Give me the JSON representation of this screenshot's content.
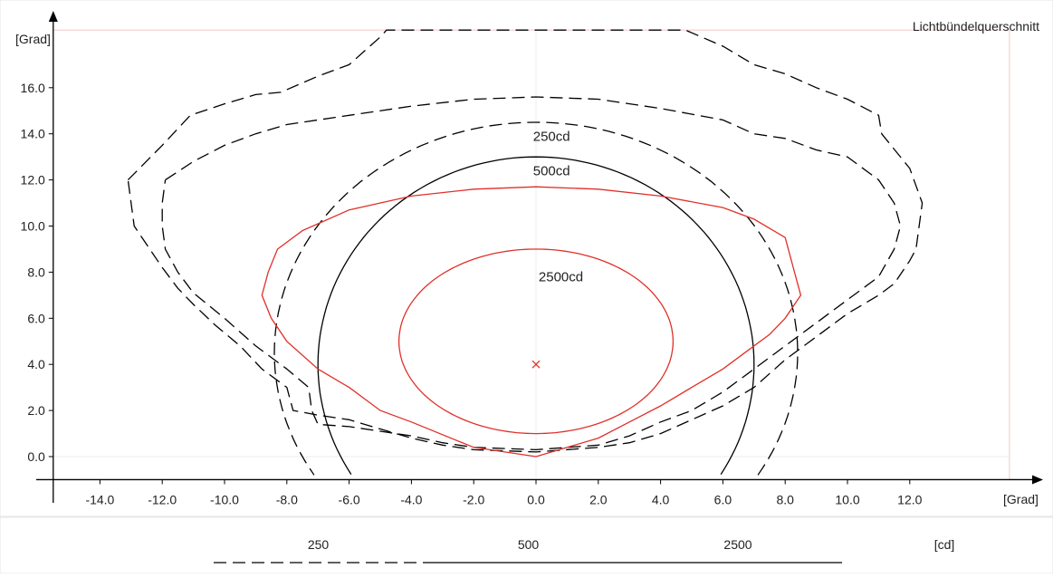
{
  "chart_data": {
    "type": "line",
    "title": "Lichtbündelquerschnitt",
    "xlabel": "[Grad]",
    "ylabel": "[Grad]",
    "xlim": [
      -15.5,
      16.3
    ],
    "ylim": [
      -1.4,
      18.5
    ],
    "xticks": [
      -14.0,
      -12.0,
      -10.0,
      -8.0,
      -6.0,
      -4.0,
      -2.0,
      0.0,
      2.0,
      4.0,
      6.0,
      8.0,
      10.0,
      12.0
    ],
    "yticks": [
      0.0,
      2.0,
      4.0,
      6.0,
      8.0,
      10.0,
      12.0,
      14.0,
      16.0
    ],
    "center_marker": {
      "x": 0,
      "y": 4.0,
      "color": "#e0302a"
    },
    "contour_labels": [
      {
        "text": "250cd",
        "x": 0.5,
        "y": 13.7
      },
      {
        "text": "500cd",
        "x": 0.5,
        "y": 12.2
      },
      {
        "text": "2500cd",
        "x": 0.8,
        "y": 7.6
      }
    ],
    "series": [
      {
        "level": "250",
        "style": "dashed",
        "color": "#000000",
        "points": [
          [
            -13.1,
            12.0
          ],
          [
            -12.0,
            13.5
          ],
          [
            -11.1,
            14.8
          ],
          [
            -10.0,
            15.3
          ],
          [
            -9.0,
            15.7
          ],
          [
            -8.2,
            15.8
          ],
          [
            -7.0,
            16.5
          ],
          [
            -6.0,
            17.0
          ],
          [
            -5.0,
            18.2
          ],
          [
            -4.8,
            18.5
          ],
          [
            4.8,
            18.5
          ],
          [
            6.0,
            17.8
          ],
          [
            7.0,
            17.0
          ],
          [
            8.0,
            16.6
          ],
          [
            9.0,
            16.0
          ],
          [
            10.0,
            15.5
          ],
          [
            11.0,
            14.8
          ],
          [
            11.1,
            14.0
          ],
          [
            12.0,
            12.5
          ],
          [
            12.4,
            11.0
          ],
          [
            12.2,
            9.0
          ],
          [
            12.0,
            8.5
          ],
          [
            11.5,
            7.5
          ],
          [
            11.0,
            7.0
          ],
          [
            10.0,
            6.2
          ],
          [
            9.0,
            5.2
          ],
          [
            8.0,
            4.2
          ],
          [
            7.0,
            3.0
          ],
          [
            6.0,
            2.2
          ],
          [
            5.0,
            1.6
          ],
          [
            4.0,
            1.0
          ],
          [
            3.0,
            0.6
          ],
          [
            2.0,
            0.4
          ],
          [
            0.0,
            0.2
          ],
          [
            -2.0,
            0.3
          ],
          [
            -3.0,
            0.5
          ],
          [
            -4.0,
            0.8
          ],
          [
            -5.0,
            1.2
          ],
          [
            -6.0,
            1.6
          ],
          [
            -7.0,
            1.8
          ],
          [
            -7.8,
            2.0
          ],
          [
            -8.0,
            3.0
          ],
          [
            -8.8,
            3.8
          ],
          [
            -9.5,
            4.8
          ],
          [
            -10.3,
            5.7
          ],
          [
            -11.0,
            6.6
          ],
          [
            -11.5,
            7.3
          ],
          [
            -12.0,
            8.2
          ],
          [
            -12.5,
            9.2
          ],
          [
            -12.9,
            10.0
          ],
          [
            -13.0,
            11.0
          ],
          [
            -13.1,
            12.0
          ]
        ]
      },
      {
        "level": "500",
        "style": "dashed",
        "color": "#000000",
        "points": [
          [
            -11.9,
            12.0
          ],
          [
            -11.0,
            12.8
          ],
          [
            -10.0,
            13.5
          ],
          [
            -9.0,
            14.0
          ],
          [
            -8.0,
            14.4
          ],
          [
            -6.0,
            14.8
          ],
          [
            -4.0,
            15.2
          ],
          [
            -2.0,
            15.5
          ],
          [
            0.0,
            15.6
          ],
          [
            2.0,
            15.5
          ],
          [
            4.0,
            15.1
          ],
          [
            6.0,
            14.6
          ],
          [
            7.0,
            14.0
          ],
          [
            8.0,
            13.8
          ],
          [
            9.0,
            13.3
          ],
          [
            10.0,
            13.0
          ],
          [
            11.0,
            12.0
          ],
          [
            11.5,
            11.0
          ],
          [
            11.7,
            10.0
          ],
          [
            11.5,
            9.0
          ],
          [
            11.0,
            7.8
          ],
          [
            10.0,
            6.8
          ],
          [
            9.0,
            5.8
          ],
          [
            8.0,
            4.8
          ],
          [
            7.0,
            3.8
          ],
          [
            6.0,
            2.8
          ],
          [
            5.0,
            2.0
          ],
          [
            4.0,
            1.5
          ],
          [
            3.0,
            0.9
          ],
          [
            2.0,
            0.5
          ],
          [
            0.0,
            0.3
          ],
          [
            -2.0,
            0.4
          ],
          [
            -3.0,
            0.6
          ],
          [
            -4.0,
            0.9
          ],
          [
            -5.0,
            1.1
          ],
          [
            -6.0,
            1.3
          ],
          [
            -7.0,
            1.4
          ],
          [
            -7.2,
            2.0
          ],
          [
            -7.3,
            3.0
          ],
          [
            -8.0,
            3.8
          ],
          [
            -9.0,
            4.8
          ],
          [
            -10.0,
            6.0
          ],
          [
            -11.0,
            7.1
          ],
          [
            -11.5,
            8.0
          ],
          [
            -11.9,
            9.0
          ],
          [
            -12.0,
            10.0
          ],
          [
            -12.0,
            11.0
          ],
          [
            -11.9,
            12.0
          ]
        ]
      },
      {
        "level": "250",
        "style": "dashed",
        "color": "#000000",
        "ellipse": {
          "cx": 0.0,
          "cy": 4.5,
          "rx": 8.4,
          "ry": 10.0,
          "clip_below": -1.0
        }
      },
      {
        "level": "500",
        "style": "solid",
        "color": "#000000",
        "ellipse": {
          "cx": 0.0,
          "cy": 4.0,
          "rx": 7.0,
          "ry": 9.0,
          "clip_below": -1.0
        }
      },
      {
        "level": "500",
        "style": "solid",
        "color": "#e0302a",
        "points": [
          [
            -8.6,
            8.0
          ],
          [
            -8.3,
            9.0
          ],
          [
            -7.5,
            9.8
          ],
          [
            -6.0,
            10.7
          ],
          [
            -4.0,
            11.3
          ],
          [
            -2.0,
            11.6
          ],
          [
            0.0,
            11.7
          ],
          [
            2.0,
            11.6
          ],
          [
            4.0,
            11.3
          ],
          [
            6.0,
            10.8
          ],
          [
            7.0,
            10.3
          ],
          [
            8.0,
            9.5
          ],
          [
            8.3,
            8.0
          ],
          [
            8.5,
            7.0
          ],
          [
            8.0,
            6.0
          ],
          [
            7.5,
            5.3
          ],
          [
            7.0,
            4.8
          ],
          [
            6.0,
            3.8
          ],
          [
            5.0,
            3.0
          ],
          [
            4.0,
            2.2
          ],
          [
            3.0,
            1.5
          ],
          [
            2.0,
            0.8
          ],
          [
            0.0,
            0.0
          ],
          [
            -2.0,
            0.4
          ],
          [
            -4.0,
            1.5
          ],
          [
            -5.0,
            2.0
          ],
          [
            -6.0,
            3.0
          ],
          [
            -7.0,
            3.8
          ],
          [
            -8.0,
            5.0
          ],
          [
            -8.5,
            6.0
          ],
          [
            -8.8,
            7.0
          ],
          [
            -8.6,
            8.0
          ]
        ]
      },
      {
        "level": "2500",
        "style": "solid",
        "color": "#e0302a",
        "ellipse": {
          "cx": 0.0,
          "cy": 5.0,
          "rx": 4.4,
          "ry": 4.0
        }
      }
    ],
    "legend": [
      {
        "label": "250",
        "style": "dashed"
      },
      {
        "label": "500",
        "style": "solid"
      },
      {
        "label": "2500",
        "style": "solid"
      }
    ],
    "legend_unit": "[cd]"
  }
}
